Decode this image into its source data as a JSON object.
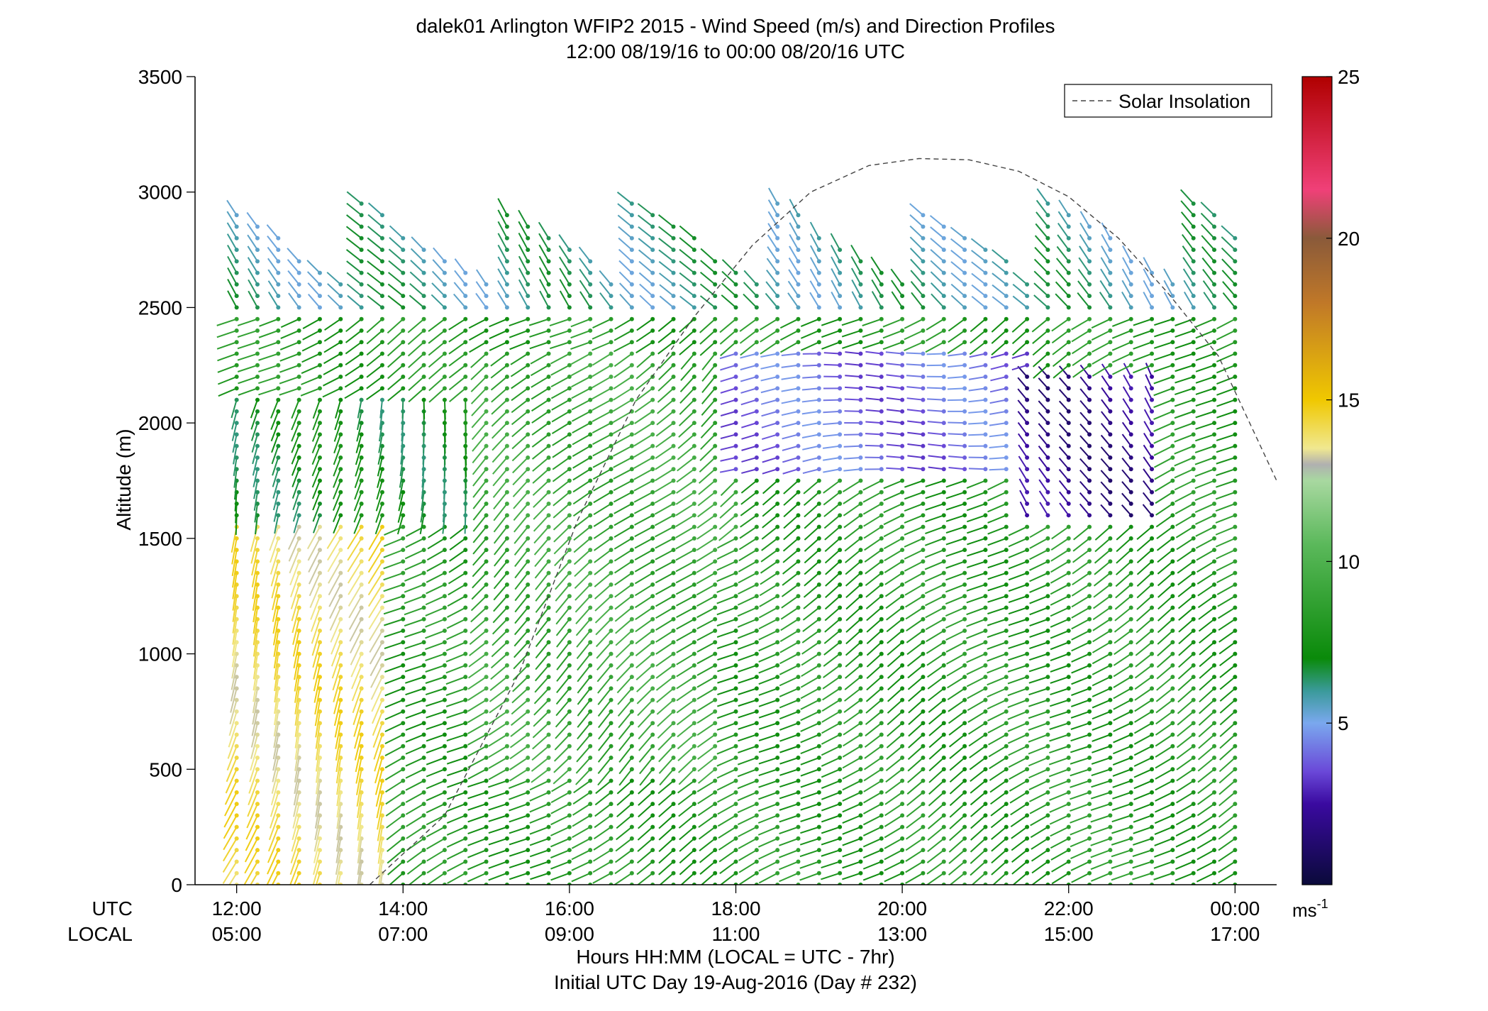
{
  "chart_data": {
    "type": "wind-barb-profile",
    "title": "dalek01 Arlington WFIP2 2015 - Wind Speed (m/s) and Direction Profiles",
    "subtitle": "12:00 08/19/16 to 00:00 08/20/16  UTC",
    "ylabel": "Altitude (m)",
    "xlabel": "Hours HH:MM  (LOCAL = UTC - 7hr)",
    "xlabel2": "Initial UTC Day 19-Aug-2016 (Day # 232)",
    "row_label_utc": "UTC",
    "row_label_local": "LOCAL",
    "ylim": [
      0,
      3500
    ],
    "y_ticks": [
      "0",
      "500",
      "1000",
      "1500",
      "2000",
      "2500",
      "3000",
      "3500"
    ],
    "x_range_hours_utc": [
      11.5,
      24.5
    ],
    "x_ticks": [
      {
        "hour": 12,
        "utc": "12:00",
        "local": "05:00"
      },
      {
        "hour": 14,
        "utc": "14:00",
        "local": "07:00"
      },
      {
        "hour": 16,
        "utc": "16:00",
        "local": "09:00"
      },
      {
        "hour": 18,
        "utc": "18:00",
        "local": "11:00"
      },
      {
        "hour": 20,
        "utc": "20:00",
        "local": "13:00"
      },
      {
        "hour": 22,
        "utc": "22:00",
        "local": "15:00"
      },
      {
        "hour": 24,
        "utc": "00:00",
        "local": "17:00"
      }
    ],
    "legend": {
      "label": "Solar Insolation",
      "placement": "top-right",
      "style": "dashed"
    },
    "colorbar": {
      "min": 0,
      "max": 25,
      "ticks": [
        "5",
        "10",
        "15",
        "20",
        "25"
      ],
      "unit": "ms",
      "unit_exponent": "-1",
      "stops": [
        [
          0.0,
          "#0a0a3a"
        ],
        [
          0.1,
          "#3a0aa0"
        ],
        [
          0.14,
          "#6a48d8"
        ],
        [
          0.2,
          "#7aa8ee"
        ],
        [
          0.24,
          "#3a9a9a"
        ],
        [
          0.28,
          "#0a8a0a"
        ],
        [
          0.42,
          "#5ab85a"
        ],
        [
          0.5,
          "#a8d8a0"
        ],
        [
          0.52,
          "#b0b0b0"
        ],
        [
          0.54,
          "#f0e890"
        ],
        [
          0.6,
          "#f0c800"
        ],
        [
          0.72,
          "#c07828"
        ],
        [
          0.8,
          "#8a5a3a"
        ],
        [
          0.86,
          "#f04078"
        ],
        [
          1.0,
          "#b00000"
        ]
      ]
    },
    "solar_insolation_curve": [
      [
        13.6,
        0
      ],
      [
        14.5,
        300
      ],
      [
        15.4,
        920
      ],
      [
        16.1,
        1580
      ],
      [
        16.8,
        2100
      ],
      [
        17.5,
        2460
      ],
      [
        18.2,
        2770
      ],
      [
        18.9,
        3000
      ],
      [
        19.6,
        3115
      ],
      [
        20.2,
        3145
      ],
      [
        20.8,
        3140
      ],
      [
        21.4,
        3090
      ],
      [
        22.0,
        2980
      ],
      [
        22.6,
        2800
      ],
      [
        23.2,
        2560
      ],
      [
        23.8,
        2290
      ],
      [
        24.5,
        1750
      ]
    ],
    "profile_times_hours_utc": [
      12.0,
      12.25,
      12.5,
      12.75,
      13.0,
      13.25,
      13.5,
      13.75,
      14.0,
      14.25,
      14.5,
      14.75,
      15.0,
      15.25,
      15.5,
      15.75,
      16.0,
      16.25,
      16.5,
      16.75,
      17.0,
      17.25,
      17.5,
      17.75,
      18.0,
      18.25,
      18.5,
      18.75,
      19.0,
      19.25,
      19.5,
      19.75,
      20.0,
      20.25,
      20.5,
      20.75,
      21.0,
      21.25,
      21.5,
      21.75,
      22.0,
      22.25,
      22.5,
      22.75,
      23.0,
      23.25,
      23.5,
      23.75,
      24.0
    ],
    "gate_altitudes_m": "0 to 3000 every 50",
    "wind_regimes": [
      {
        "hours": [
          12.0,
          13.75
        ],
        "altitudes": [
          0,
          1600
        ],
        "speed_ms": 14,
        "direction_deg": 200
      },
      {
        "hours": [
          12.0,
          15.0
        ],
        "altitudes": [
          1600,
          2100
        ],
        "speed_ms": 7,
        "direction_deg": 190
      },
      {
        "hours": [
          15.0,
          18.0
        ],
        "altitudes": [
          500,
          2300
        ],
        "speed_ms": 9,
        "direction_deg": 230
      },
      {
        "hours": [
          18.0,
          21.5
        ],
        "altitudes": [
          1800,
          2300
        ],
        "speed_ms": 4,
        "direction_deg": 265
      },
      {
        "hours": [
          21.5,
          23.0
        ],
        "altitudes": [
          1600,
          2200
        ],
        "speed_ms": 2,
        "direction_deg": 330
      },
      {
        "hours": [
          18.0,
          24.0
        ],
        "altitudes": [
          0,
          1500
        ],
        "speed_ms": 8,
        "direction_deg": 240
      },
      {
        "hours": [
          12.0,
          24.0
        ],
        "altitudes": [
          2500,
          3000
        ],
        "speed_ms": 6,
        "direction_deg": 320
      }
    ]
  }
}
